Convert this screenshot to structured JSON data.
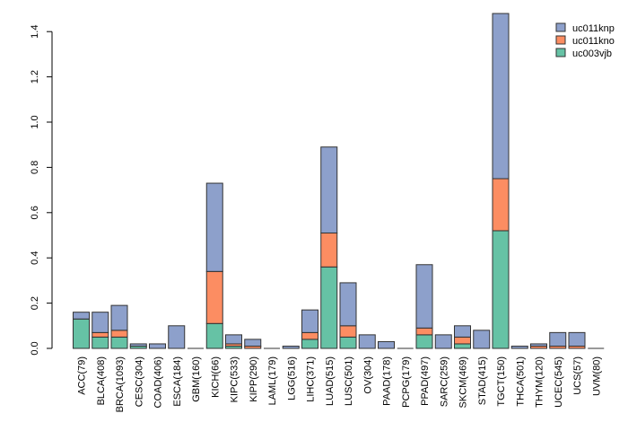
{
  "chart_data": {
    "type": "bar",
    "stacked": true,
    "title": "",
    "xlabel": "",
    "ylabel": "",
    "ylim": [
      0,
      1.48
    ],
    "yticks": [
      "0.0",
      "0.2",
      "0.4",
      "0.6",
      "0.8",
      "1.0",
      "1.2",
      "1.4"
    ],
    "categories": [
      "ACC(79)",
      "BLCA(408)",
      "BRCA(1093)",
      "CESC(304)",
      "COAD(406)",
      "ESCA(184)",
      "GBM(160)",
      "KICH(66)",
      "KIPC(533)",
      "KIPP(290)",
      "LAML(179)",
      "LGG(516)",
      "LIHC(371)",
      "LUAD(515)",
      "LUSC(501)",
      "OV(304)",
      "PAAD(178)",
      "PCPG(179)",
      "PPAD(497)",
      "SARC(259)",
      "SKCM(469)",
      "STAD(415)",
      "TGCT(150)",
      "THCA(501)",
      "THYM(120)",
      "UCEC(545)",
      "UCS(57)",
      "UVM(80)"
    ],
    "series": [
      {
        "name": "uc003vjb",
        "color": "#66c2a5",
        "values": [
          0.13,
          0.05,
          0.05,
          0.01,
          0.0,
          0.0,
          0.0,
          0.11,
          0.01,
          0.0,
          0.0,
          0.0,
          0.04,
          0.36,
          0.05,
          0.0,
          0.0,
          0.0,
          0.06,
          0.0,
          0.02,
          0.0,
          0.52,
          0.0,
          0.0,
          0.0,
          0.0,
          0.0
        ]
      },
      {
        "name": "uc011kno",
        "color": "#fc8d62",
        "values": [
          0.0,
          0.02,
          0.03,
          0.0,
          0.0,
          0.0,
          0.0,
          0.23,
          0.01,
          0.01,
          0.0,
          0.0,
          0.03,
          0.15,
          0.05,
          0.0,
          0.0,
          0.0,
          0.03,
          0.0,
          0.03,
          0.0,
          0.23,
          0.0,
          0.01,
          0.01,
          0.01,
          0.0
        ]
      },
      {
        "name": "uc011knp",
        "color": "#8da0cb",
        "values": [
          0.03,
          0.09,
          0.11,
          0.01,
          0.02,
          0.1,
          0.0,
          0.39,
          0.04,
          0.03,
          0.0,
          0.01,
          0.1,
          0.38,
          0.19,
          0.06,
          0.03,
          0.0,
          0.28,
          0.06,
          0.05,
          0.08,
          0.73,
          0.01,
          0.01,
          0.06,
          0.06,
          0.0
        ]
      }
    ],
    "legend_position": "top-right"
  }
}
